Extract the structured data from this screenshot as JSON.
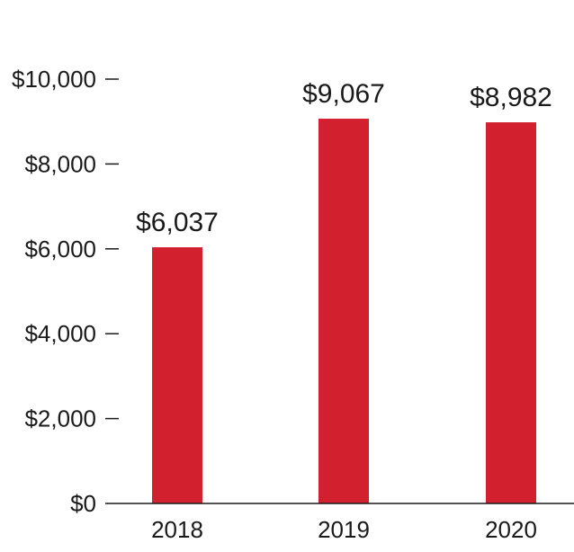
{
  "chart_data": {
    "type": "bar",
    "categories": [
      "2018",
      "2019",
      "2020"
    ],
    "values": [
      6037,
      9067,
      8982
    ],
    "value_labels": [
      "$6,037",
      "$9,067",
      "$8,982"
    ],
    "y_ticks": [
      0,
      2000,
      4000,
      6000,
      8000,
      10000
    ],
    "y_tick_labels": [
      "$0",
      "$2,000",
      "$4,000",
      "$6,000",
      "$8,000",
      "$10,000"
    ],
    "ylim": [
      0,
      10000
    ],
    "grid": false,
    "legend": "none",
    "title": "",
    "xlabel": "",
    "ylabel": "",
    "bar_color": "#d2202f",
    "axis_color": "#1a1a1a"
  }
}
